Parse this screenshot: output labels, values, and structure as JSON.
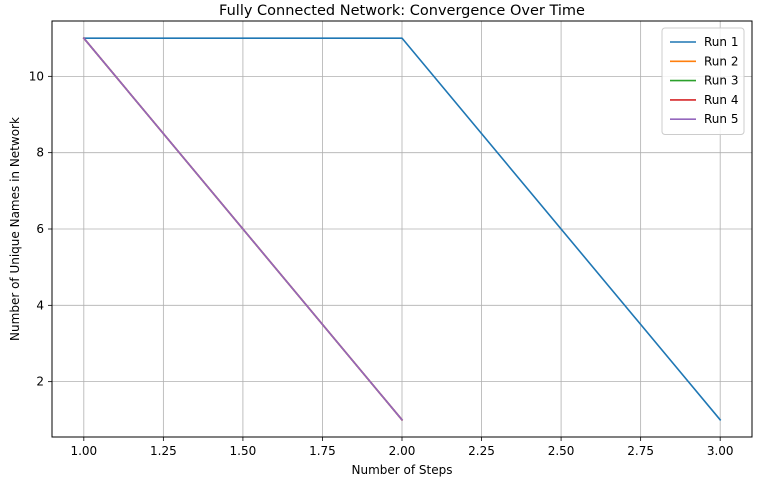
{
  "chart_data": {
    "type": "line",
    "title": "Fully Connected Network: Convergence Over Time",
    "xlabel": "Number of Steps",
    "ylabel": "Number of Unique Names in Network",
    "xlim": [
      0.9,
      3.1
    ],
    "ylim": [
      0.55,
      11.45
    ],
    "xticks": [
      1.0,
      1.25,
      1.5,
      1.75,
      2.0,
      2.25,
      2.5,
      2.75,
      3.0
    ],
    "xtick_labels": [
      "1.00",
      "1.25",
      "1.50",
      "1.75",
      "2.00",
      "2.25",
      "2.50",
      "2.75",
      "3.00"
    ],
    "yticks": [
      2,
      4,
      6,
      8,
      10
    ],
    "ytick_labels": [
      "2",
      "4",
      "6",
      "8",
      "10"
    ],
    "grid": true,
    "legend_position": "top-right",
    "series": [
      {
        "name": "Run 1",
        "color": "#1f77b4",
        "x": [
          1,
          2,
          3
        ],
        "y": [
          11,
          11,
          1
        ]
      },
      {
        "name": "Run 2",
        "color": "#ff7f0e",
        "x": [
          1,
          2
        ],
        "y": [
          11,
          1
        ]
      },
      {
        "name": "Run 3",
        "color": "#2ca02c",
        "x": [
          1,
          2
        ],
        "y": [
          11,
          1
        ]
      },
      {
        "name": "Run 4",
        "color": "#d62728",
        "x": [
          1,
          2
        ],
        "y": [
          11,
          1
        ]
      },
      {
        "name": "Run 5",
        "color": "#9467bd",
        "x": [
          1,
          2
        ],
        "y": [
          11,
          1
        ]
      }
    ]
  }
}
